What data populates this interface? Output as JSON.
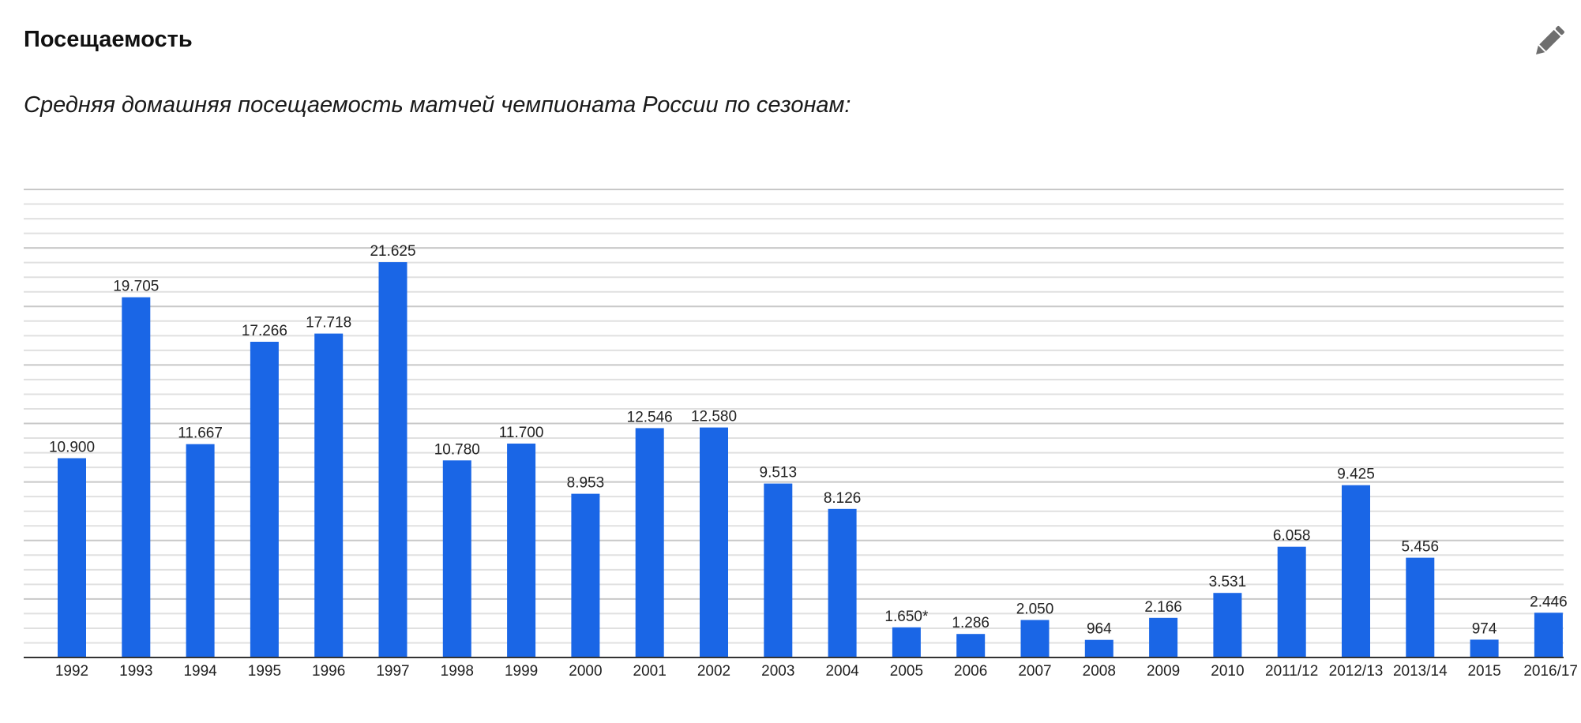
{
  "section": {
    "title": "Посещаемость",
    "edit_icon": "pencil-icon"
  },
  "chart_data": {
    "type": "bar",
    "title": "Средняя домашняя посещаемость матчей чемпионата России по сезонам:",
    "xlabel": "",
    "ylabel": "",
    "ylim": [
      0,
      25600
    ],
    "grid": true,
    "bar_color": "#1a66e6",
    "categories": [
      "1992",
      "1993",
      "1994",
      "1995",
      "1996",
      "1997",
      "1998",
      "1999",
      "2000",
      "2001",
      "2002",
      "2003",
      "2004",
      "2005",
      "2006",
      "2007",
      "2008",
      "2009",
      "2010",
      "2011/12",
      "2012/13",
      "2013/14",
      "2015",
      "2016/17"
    ],
    "values": [
      10900,
      19705,
      11667,
      17266,
      17718,
      21625,
      10780,
      11700,
      8953,
      12546,
      12580,
      9513,
      8126,
      1650,
      1286,
      2050,
      964,
      2166,
      3531,
      6058,
      9425,
      5456,
      974,
      2446
    ],
    "labels": [
      "10.900",
      "19.705",
      "11.667",
      "17.266",
      "17.718",
      "21.625",
      "10.780",
      "11.700",
      "8.953",
      "12.546",
      "12.580",
      "9.513",
      "8.126",
      "1.650*",
      "1.286",
      "2.050",
      "964",
      "2.166",
      "3.531",
      "6.058",
      "9.425",
      "5.456",
      "974",
      "2.446"
    ]
  }
}
